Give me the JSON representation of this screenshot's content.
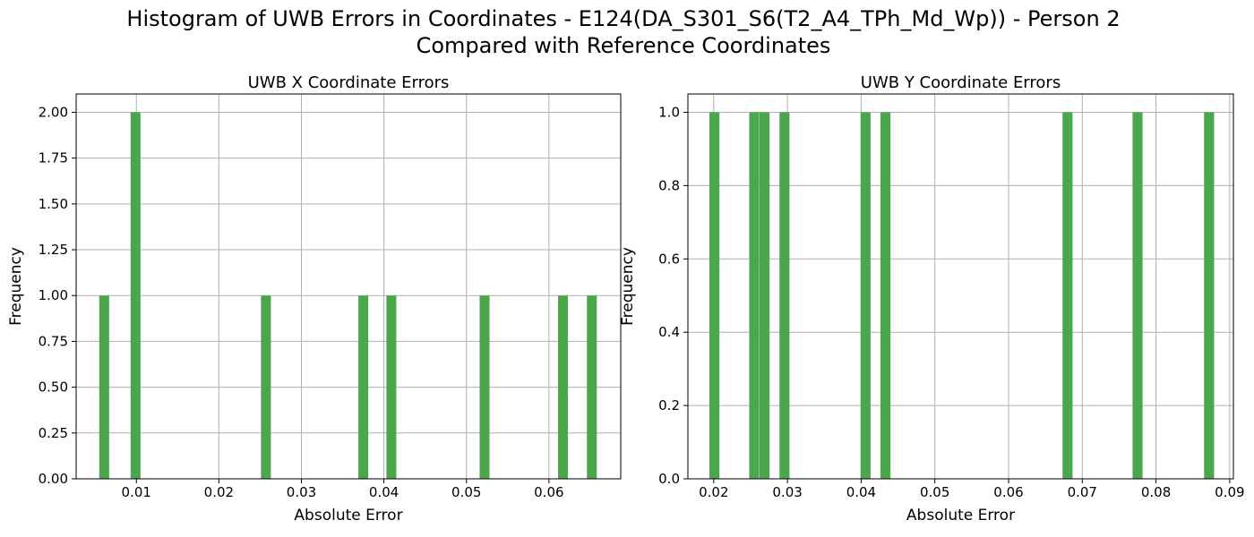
{
  "figure": {
    "suptitle_line1": "Histogram of UWB Errors in Coordinates - E124(DA_S301_S6(T2_A4_TPh_Md_Wp)) - Person 2",
    "suptitle_line2": "Compared with Reference Coordinates"
  },
  "colors": {
    "bar": "#4ca74c",
    "grid": "#b0b0b0",
    "axis": "#000000"
  },
  "chart_data": [
    {
      "type": "bar",
      "subtype": "histogram",
      "title": "UWB X Coordinate Errors",
      "xlabel": "Absolute Error",
      "ylabel": "Frequency",
      "xlim": [
        0.0027,
        0.0687
      ],
      "ylim": [
        0,
        2.1
      ],
      "xticks": [
        0.01,
        0.02,
        0.03,
        0.04,
        0.05,
        0.06
      ],
      "xtick_labels": [
        "0.01",
        "0.02",
        "0.03",
        "0.04",
        "0.05",
        "0.06"
      ],
      "yticks": [
        0,
        0.25,
        0.5,
        0.75,
        1.0,
        1.25,
        1.5,
        1.75,
        2.0
      ],
      "ytick_labels": [
        "0.00",
        "0.25",
        "0.50",
        "0.75",
        "1.00",
        "1.25",
        "1.50",
        "1.75",
        "2.00"
      ],
      "bin_width": 0.0012,
      "grid": true,
      "bars": [
        {
          "x": 0.0061,
          "count": 1
        },
        {
          "x": 0.0099,
          "count": 2
        },
        {
          "x": 0.0257,
          "count": 1
        },
        {
          "x": 0.0375,
          "count": 1
        },
        {
          "x": 0.0409,
          "count": 1
        },
        {
          "x": 0.0522,
          "count": 1
        },
        {
          "x": 0.0617,
          "count": 1
        },
        {
          "x": 0.0652,
          "count": 1
        }
      ]
    },
    {
      "type": "bar",
      "subtype": "histogram",
      "title": "UWB Y Coordinate Errors",
      "xlabel": "Absolute Error",
      "ylabel": "Frequency",
      "xlim": [
        0.0165,
        0.0905
      ],
      "ylim": [
        0,
        1.05
      ],
      "xticks": [
        0.02,
        0.03,
        0.04,
        0.05,
        0.06,
        0.07,
        0.08,
        0.09
      ],
      "xtick_labels": [
        "0.02",
        "0.03",
        "0.04",
        "0.05",
        "0.06",
        "0.07",
        "0.08",
        "0.09"
      ],
      "yticks": [
        0,
        0.2,
        0.4,
        0.6,
        0.8,
        1.0
      ],
      "ytick_labels": [
        "0.0",
        "0.2",
        "0.4",
        "0.6",
        "0.8",
        "1.0"
      ],
      "bin_width": 0.00136,
      "grid": true,
      "bars": [
        {
          "x": 0.0201,
          "count": 1
        },
        {
          "x": 0.0255,
          "count": 1
        },
        {
          "x": 0.0269,
          "count": 1
        },
        {
          "x": 0.0296,
          "count": 1
        },
        {
          "x": 0.0406,
          "count": 1
        },
        {
          "x": 0.0433,
          "count": 1
        },
        {
          "x": 0.068,
          "count": 1
        },
        {
          "x": 0.0775,
          "count": 1
        },
        {
          "x": 0.0872,
          "count": 1
        }
      ]
    }
  ]
}
